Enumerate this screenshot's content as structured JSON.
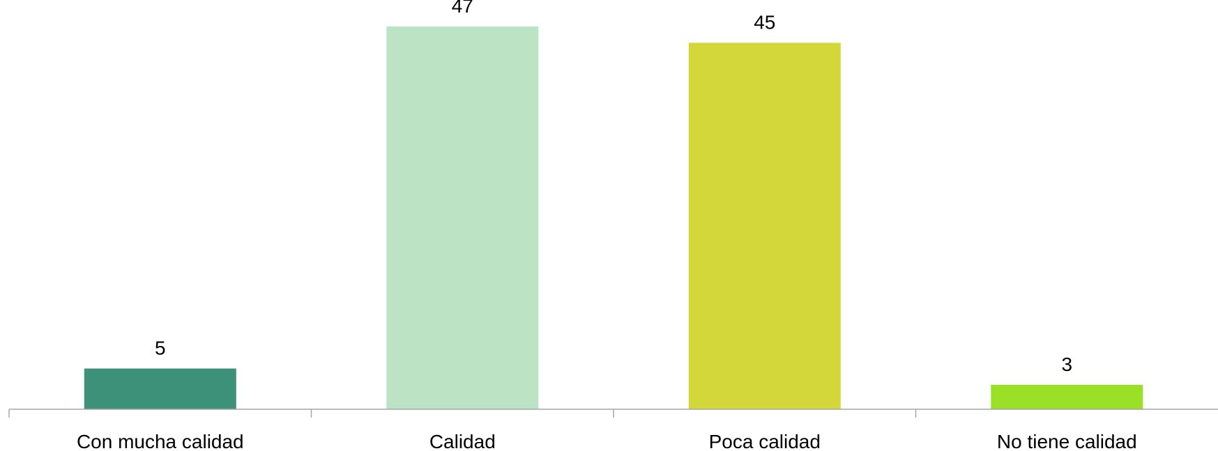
{
  "chart_data": {
    "type": "bar",
    "title": "",
    "xlabel": "",
    "ylabel": "",
    "categories": [
      "Con mucha calidad",
      "Calidad",
      "Poca calidad",
      "No tiene calidad"
    ],
    "values": [
      5,
      47,
      45,
      3
    ],
    "data_labels": [
      "5",
      "47",
      "45",
      "3"
    ],
    "bar_colors": [
      "#3d9179",
      "#bce4c4",
      "#d3d73a",
      "#99e026"
    ],
    "axis_color": "#a6a6a6",
    "ylim": [
      0,
      50
    ],
    "grid": false,
    "legend": "none"
  }
}
